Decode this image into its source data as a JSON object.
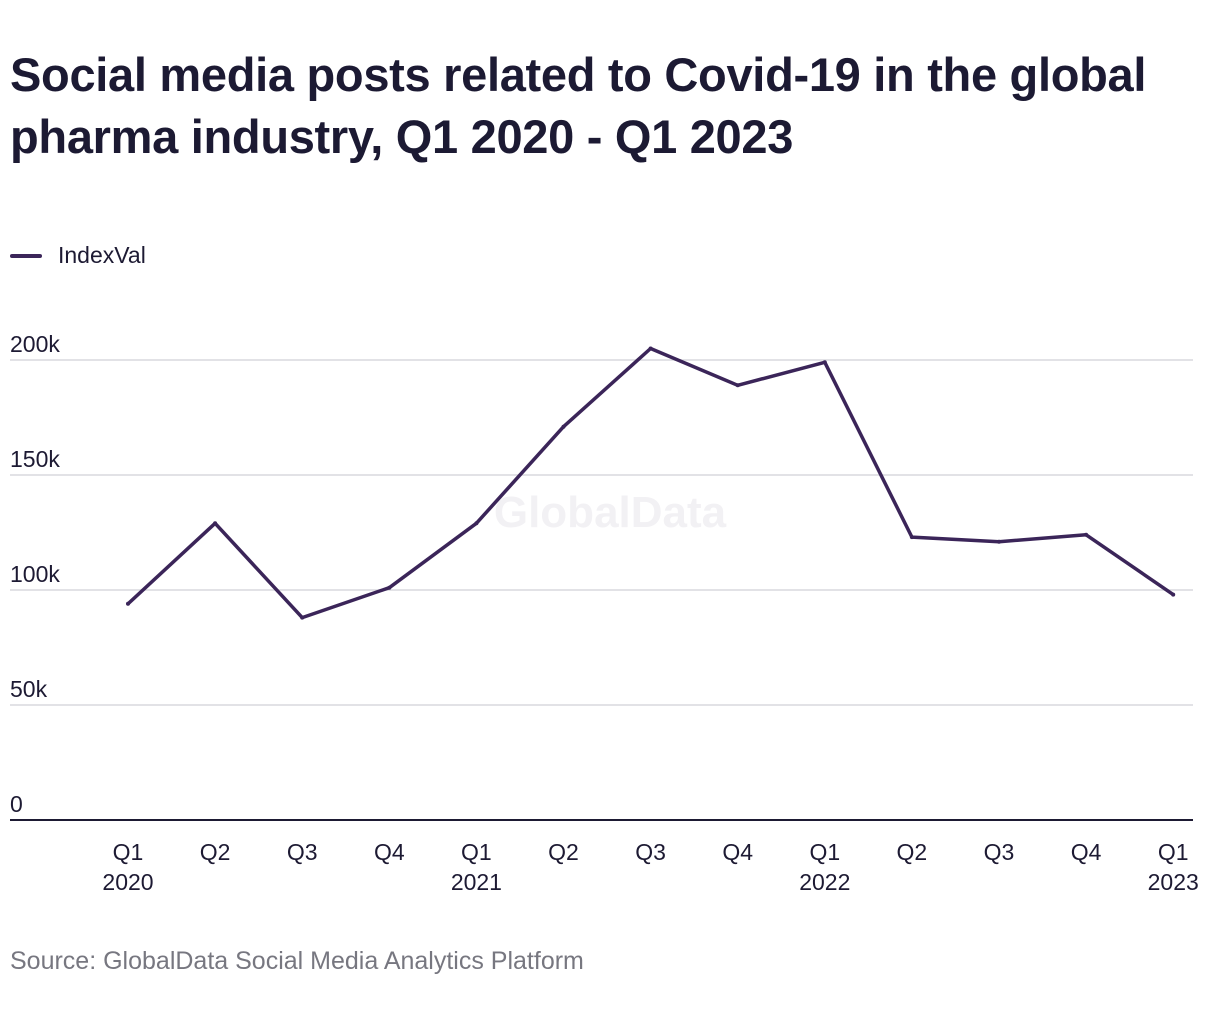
{
  "chart_data": {
    "type": "line",
    "title": "Social media posts related to Covid-19 in the global pharma industry, Q1 2020 - Q1 2023",
    "categories": [
      [
        "Q1",
        "2020"
      ],
      [
        "Q2"
      ],
      [
        "Q3"
      ],
      [
        "Q4"
      ],
      [
        "Q1",
        "2021"
      ],
      [
        "Q2"
      ],
      [
        "Q3"
      ],
      [
        "Q4"
      ],
      [
        "Q1",
        "2022"
      ],
      [
        "Q2"
      ],
      [
        "Q3"
      ],
      [
        "Q4"
      ],
      [
        "Q1",
        "2023"
      ]
    ],
    "series": [
      {
        "name": "IndexVal",
        "color": "#3b2559",
        "values": [
          94000,
          129000,
          88000,
          101000,
          129000,
          171000,
          205000,
          189000,
          199000,
          123000,
          121000,
          124000,
          98000
        ]
      }
    ],
    "y_ticks": [
      0,
      50000,
      100000,
      150000,
      200000
    ],
    "y_tick_labels": [
      "0",
      "50k",
      "100k",
      "150k",
      "200k"
    ],
    "ylim": [
      0,
      200000
    ],
    "xlabel": "",
    "ylabel": "",
    "grid": true,
    "legend_position": "top-left",
    "watermark": "GlobalData",
    "source": "Source: GlobalData Social Media Analytics Platform"
  }
}
